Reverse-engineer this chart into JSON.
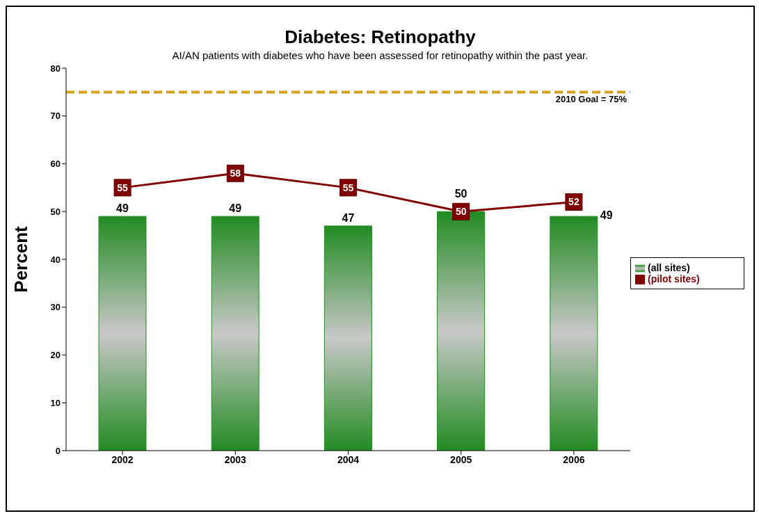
{
  "chart_data": {
    "type": "bar",
    "title": "Diabetes:  Retinopathy",
    "subtitle": "AI/AN patients with diabetes who have been assessed for retinopathy within the past year.",
    "ylabel": "Percent",
    "categories": [
      "2002",
      "2003",
      "2004",
      "2005",
      "2006"
    ],
    "series": [
      {
        "name": "(all sites)",
        "color": "#228b22",
        "values": [
          49,
          49,
          47,
          50,
          49
        ]
      },
      {
        "name": "(pilot sites)",
        "type": "line",
        "color": "#800000",
        "values": [
          55,
          58,
          55,
          50,
          52
        ]
      }
    ],
    "ylim": [
      0,
      80
    ],
    "yticks": [
      0,
      10,
      20,
      30,
      40,
      50,
      60,
      70,
      80
    ],
    "legend": "right",
    "marker": "square",
    "line_style": "solid",
    "data_labels": true,
    "ref_lines": [
      {
        "axis": "y",
        "value": 75,
        "label": "2010 Goal = 75%",
        "color": "#d4a017",
        "line_style": "dashed"
      }
    ]
  }
}
